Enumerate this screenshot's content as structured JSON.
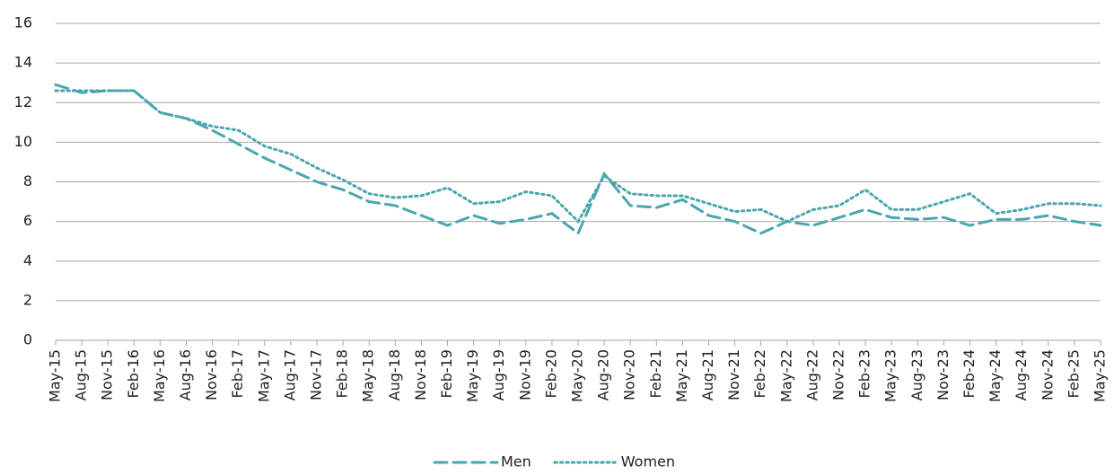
{
  "chart_data": {
    "type": "line",
    "x": [
      "May-15",
      "Aug-15",
      "Nov-15",
      "Feb-16",
      "May-16",
      "Aug-16",
      "Nov-16",
      "Feb-17",
      "May-17",
      "Aug-17",
      "Nov-17",
      "Feb-18",
      "May-18",
      "Aug-18",
      "Nov-18",
      "Feb-19",
      "May-19",
      "Aug-19",
      "Nov-19",
      "Feb-20",
      "May-20",
      "Aug-20",
      "Nov-20",
      "Feb-21",
      "May-21",
      "Aug-21",
      "Nov-21",
      "Feb-22",
      "May-22",
      "Aug-22",
      "Nov-22",
      "Feb-23",
      "May-23",
      "Aug-23",
      "Nov-23",
      "Feb-24",
      "May-24",
      "Aug-24",
      "Nov-24",
      "Feb-25",
      "May-25"
    ],
    "series": [
      {
        "name": "Men",
        "color": "#4aa6b0",
        "dash": "dashed",
        "values": [
          12.9,
          12.5,
          12.6,
          12.6,
          11.5,
          11.2,
          10.6,
          9.9,
          9.2,
          8.6,
          8.0,
          7.6,
          7.0,
          6.8,
          6.3,
          5.8,
          6.3,
          5.9,
          6.1,
          6.4,
          5.4,
          8.4,
          6.8,
          6.7,
          7.1,
          6.3,
          6.0,
          5.4,
          6.0,
          5.8,
          6.2,
          6.6,
          6.2,
          6.1,
          6.2,
          5.8,
          6.1,
          6.1,
          6.3,
          6.0,
          5.8
        ]
      },
      {
        "name": "Women",
        "color": "#4aa6b0",
        "dash": "dotted",
        "values": [
          12.6,
          12.6,
          12.6,
          12.6,
          11.5,
          11.2,
          10.8,
          10.6,
          9.8,
          9.4,
          8.7,
          8.1,
          7.4,
          7.2,
          7.3,
          7.7,
          6.9,
          7.0,
          7.5,
          7.3,
          6.0,
          8.3,
          7.4,
          7.3,
          7.3,
          6.9,
          6.5,
          6.6,
          6.0,
          6.6,
          6.8,
          7.6,
          6.6,
          6.6,
          7.0,
          7.4,
          6.4,
          6.6,
          6.9,
          6.9,
          6.8
        ]
      }
    ],
    "ylim": [
      0,
      16
    ],
    "yticks": [
      0,
      2,
      4,
      6,
      8,
      10,
      12,
      14,
      16
    ],
    "grid": true,
    "legend": "bottom"
  }
}
